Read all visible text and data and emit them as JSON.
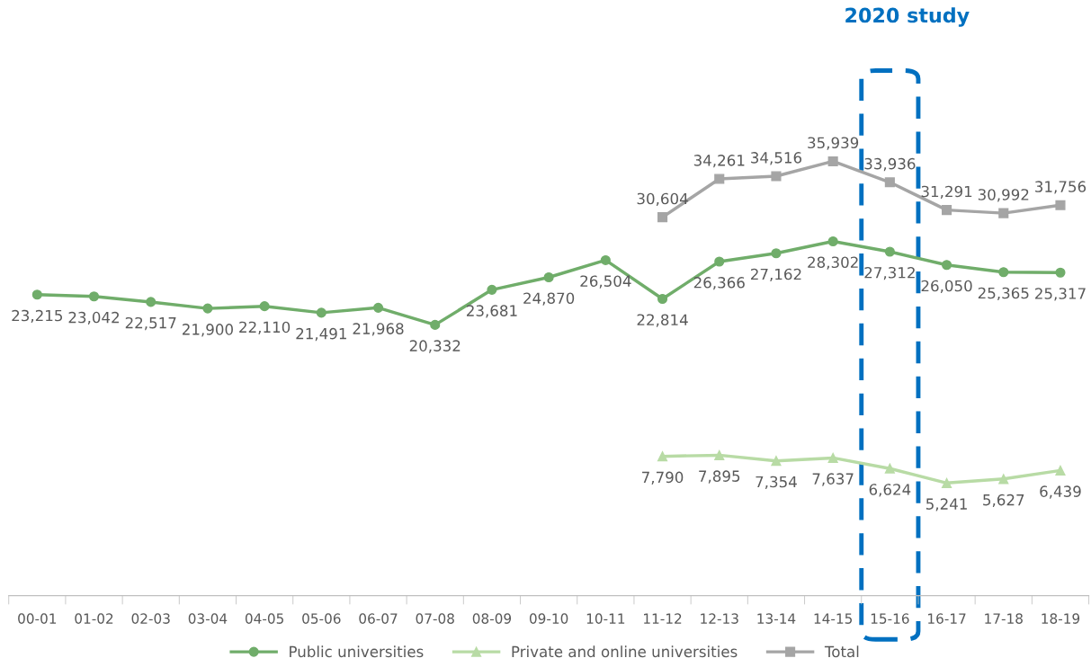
{
  "chart_data": {
    "type": "line",
    "categories": [
      "00-01",
      "01-02",
      "02-03",
      "03-04",
      "04-05",
      "05-06",
      "06-07",
      "07-08",
      "08-09",
      "09-10",
      "10-11",
      "11-12",
      "12-13",
      "13-14",
      "14-15",
      "15-16",
      "16-17",
      "17-18",
      "18-19"
    ],
    "series": [
      {
        "name": "Public universities",
        "color": "#70ad6a",
        "marker": "circle",
        "values": [
          23215,
          23042,
          22517,
          21900,
          22110,
          21491,
          21968,
          20332,
          23681,
          24870,
          26504,
          22814,
          26366,
          27162,
          28302,
          27312,
          26050,
          25365,
          25317
        ],
        "value_labels": [
          "23,215",
          "23,042",
          "22,517",
          "21,900",
          "22,110",
          "21,491",
          "21,968",
          "20,332",
          "23,681",
          "24,870",
          "26,504",
          "22,814",
          "26,366",
          "27,162",
          "28,302",
          "27,312",
          "26,050",
          "25,365",
          "25,317"
        ]
      },
      {
        "name": "Private and online universities",
        "color": "#b8dba5",
        "marker": "triangle",
        "values": [
          null,
          null,
          null,
          null,
          null,
          null,
          null,
          null,
          null,
          null,
          null,
          7790,
          7895,
          7354,
          7637,
          6624,
          5241,
          5627,
          6439
        ],
        "value_labels": [
          null,
          null,
          null,
          null,
          null,
          null,
          null,
          null,
          null,
          null,
          null,
          "7,790",
          "7,895",
          "7,354",
          "7,637",
          "6,624",
          "5,241",
          "5,627",
          "6,439"
        ]
      },
      {
        "name": "Total",
        "color": "#a5a5a5",
        "marker": "square",
        "values": [
          null,
          null,
          null,
          null,
          null,
          null,
          null,
          null,
          null,
          null,
          null,
          30604,
          34261,
          34516,
          35939,
          33936,
          31291,
          30992,
          31756
        ],
        "value_labels": [
          null,
          null,
          null,
          null,
          null,
          null,
          null,
          null,
          null,
          null,
          null,
          "30,604",
          "34,261",
          "34,516",
          "35,939",
          "33,936",
          "31,291",
          "30,992",
          "31,756"
        ]
      }
    ],
    "tick_labels": "x",
    "legend": "bottom",
    "annotations": [
      "2020 study"
    ]
  }
}
